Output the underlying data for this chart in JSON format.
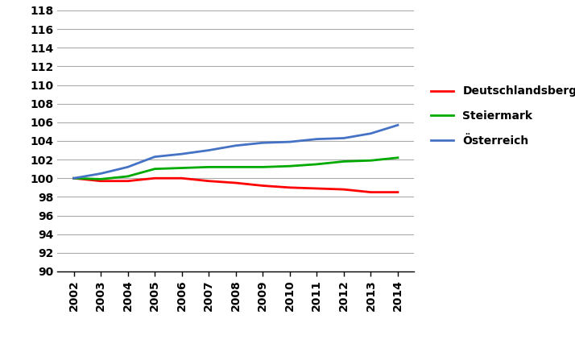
{
  "years": [
    2002,
    2003,
    2004,
    2005,
    2006,
    2007,
    2008,
    2009,
    2010,
    2011,
    2012,
    2013,
    2014
  ],
  "deutschlandsberg": [
    100.0,
    99.7,
    99.7,
    100.0,
    100.0,
    99.7,
    99.5,
    99.2,
    99.0,
    98.9,
    98.8,
    98.5,
    98.5
  ],
  "steiermark": [
    100.0,
    99.9,
    100.2,
    101.0,
    101.1,
    101.2,
    101.2,
    101.2,
    101.3,
    101.5,
    101.8,
    101.9,
    102.2
  ],
  "oesterreich": [
    100.0,
    100.5,
    101.2,
    102.3,
    102.6,
    103.0,
    103.5,
    103.8,
    103.9,
    104.2,
    104.3,
    104.8,
    105.7
  ],
  "colors": {
    "deutschlandsberg": "#ff0000",
    "steiermark": "#00aa00",
    "oesterreich": "#4472c4"
  },
  "legend_labels": [
    "Deutschlandsberg",
    "Steiermark",
    "Österreich"
  ],
  "ylim": [
    90,
    118
  ],
  "yticks": [
    90,
    92,
    94,
    96,
    98,
    100,
    102,
    104,
    106,
    108,
    110,
    112,
    114,
    116,
    118
  ],
  "linewidth": 2.0,
  "background_color": "#ffffff",
  "grid_color": "#aaaaaa",
  "tick_fontsize": 10,
  "legend_fontsize": 10
}
